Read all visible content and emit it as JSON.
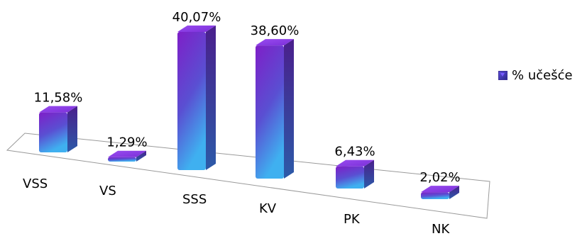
{
  "chart_data": {
    "type": "bar",
    "categories": [
      "VSS",
      "VS",
      "SSS",
      "KV",
      "PK",
      "NK"
    ],
    "values": [
      11.58,
      1.29,
      40.07,
      38.6,
      6.43,
      2.02
    ],
    "value_labels": [
      "11,58%",
      "1,29%",
      "40,07%",
      "38,60%",
      "6,43%",
      "2,02%"
    ],
    "series": [
      {
        "name": "% učešće",
        "values": [
          11.58,
          1.29,
          40.07,
          38.6,
          6.43,
          2.02
        ]
      }
    ],
    "title": "",
    "xlabel": "",
    "ylabel": "",
    "ylim": [
      0,
      45
    ],
    "grid": false,
    "legend_position": "right",
    "colors": {
      "bar_top": "#8a2be2",
      "bar_bottom": "#3fa9f5",
      "bar_side": "#4a2a9a"
    }
  }
}
